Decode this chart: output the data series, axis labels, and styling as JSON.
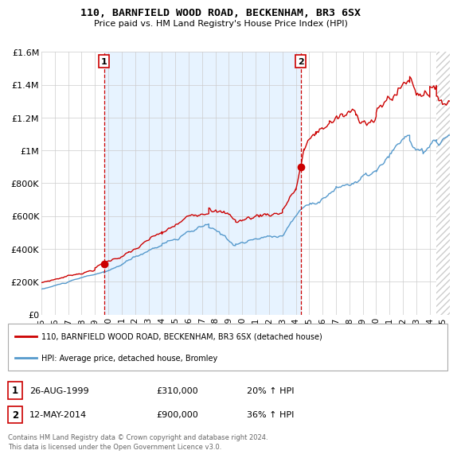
{
  "title": "110, BARNFIELD WOOD ROAD, BECKENHAM, BR3 6SX",
  "subtitle": "Price paid vs. HM Land Registry's House Price Index (HPI)",
  "legend_label_red": "110, BARNFIELD WOOD ROAD, BECKENHAM, BR3 6SX (detached house)",
  "legend_label_blue": "HPI: Average price, detached house, Bromley",
  "footnote": "Contains HM Land Registry data © Crown copyright and database right 2024.\nThis data is licensed under the Open Government Licence v3.0.",
  "sale1_date": "26-AUG-1999",
  "sale1_price": "£310,000",
  "sale1_hpi": "20% ↑ HPI",
  "sale2_date": "12-MAY-2014",
  "sale2_price": "£900,000",
  "sale2_hpi": "36% ↑ HPI",
  "red_color": "#cc0000",
  "blue_color": "#5599cc",
  "ylim": [
    0,
    1600000
  ],
  "yticks": [
    0,
    200000,
    400000,
    600000,
    800000,
    1000000,
    1200000,
    1400000,
    1600000
  ],
  "ytick_labels": [
    "£0",
    "£200K",
    "£400K",
    "£600K",
    "£800K",
    "£1M",
    "£1.2M",
    "£1.4M",
    "£1.6M"
  ],
  "sale1_year": 1999.67,
  "sale1_value": 310000,
  "sale2_year": 2014.37,
  "sale2_value": 900000,
  "vline1_year": 1999.67,
  "vline2_year": 2014.37,
  "hatch_start": 2024.5,
  "xlim": [
    1995,
    2025.5
  ],
  "xticks": [
    1995,
    1996,
    1997,
    1998,
    1999,
    2000,
    2001,
    2002,
    2003,
    2004,
    2005,
    2006,
    2007,
    2008,
    2009,
    2010,
    2011,
    2012,
    2013,
    2014,
    2015,
    2016,
    2017,
    2018,
    2019,
    2020,
    2021,
    2022,
    2023,
    2024,
    2025
  ]
}
